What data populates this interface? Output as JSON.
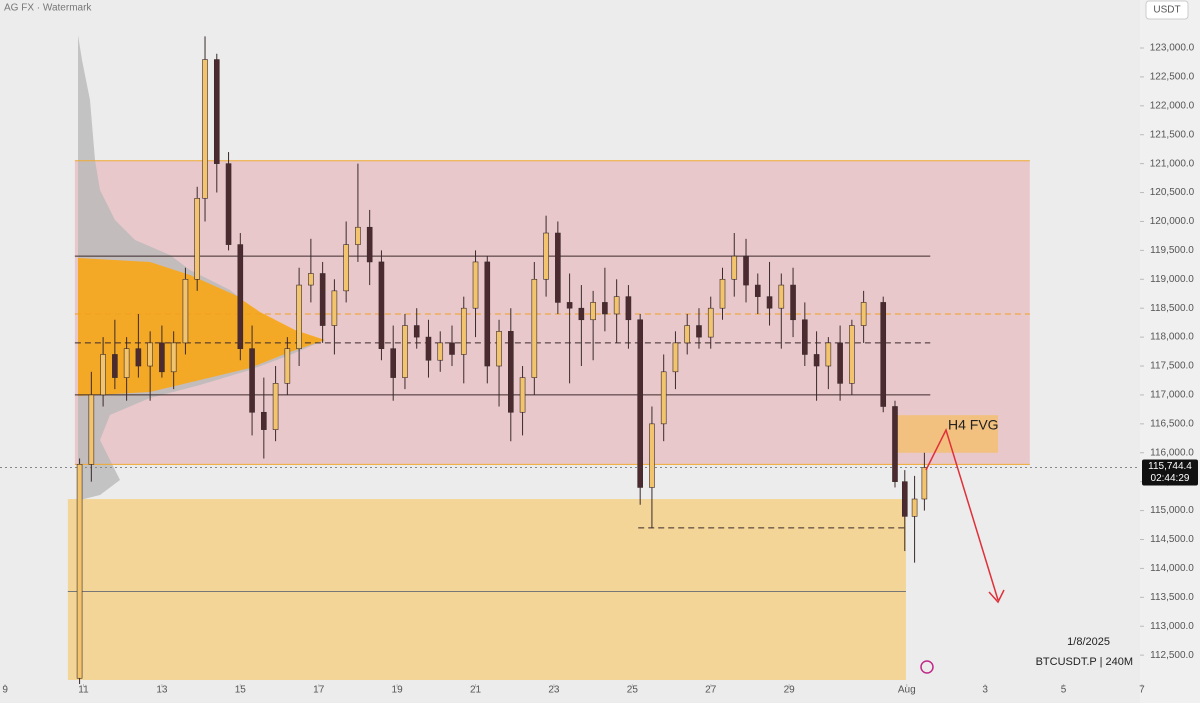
{
  "chart_data": {
    "type": "candlestick",
    "watermark": "AG FX · Watermark",
    "currency": "USDT",
    "up_color": "#f2c46e",
    "down_color": "#4b2b30",
    "x": [
      10.9,
      11.2,
      11.5,
      11.8,
      12.1,
      12.4,
      12.7,
      13.0,
      13.3,
      13.6,
      13.9,
      14.1,
      14.4,
      14.7,
      15.0,
      15.3,
      15.6,
      15.9,
      16.2,
      16.5,
      16.8,
      17.1,
      17.4,
      17.7,
      18.0,
      18.3,
      18.6,
      18.9,
      19.2,
      19.5,
      19.8,
      20.1,
      20.4,
      20.7,
      21.0,
      21.3,
      21.6,
      21.9,
      22.2,
      22.5,
      22.8,
      23.1,
      23.4,
      23.7,
      24.0,
      24.3,
      24.6,
      24.9,
      25.2,
      25.5,
      25.8,
      26.1,
      26.4,
      26.7,
      27.0,
      27.3,
      27.6,
      27.9,
      28.2,
      28.5,
      28.8,
      29.1,
      29.4,
      29.7,
      30.0,
      30.3,
      30.6,
      30.9,
      31.4,
      31.7,
      31.95,
      32.2,
      32.45
    ],
    "open": [
      112100,
      115800,
      117000,
      117700,
      117300,
      117800,
      117500,
      117900,
      117400,
      117900,
      119000,
      120400,
      122800,
      121000,
      119600,
      117800,
      116700,
      116400,
      117200,
      117800,
      118900,
      119100,
      118200,
      118800,
      119600,
      119900,
      119300,
      117800,
      117300,
      118200,
      118000,
      117600,
      117900,
      117700,
      118500,
      119300,
      117500,
      118100,
      116700,
      117300,
      119000,
      119800,
      118600,
      118500,
      118300,
      118600,
      118400,
      118700,
      118300,
      115400,
      116500,
      117400,
      117900,
      118200,
      118000,
      118500,
      119000,
      119400,
      118900,
      118700,
      118500,
      118900,
      118300,
      117700,
      117500,
      117900,
      117200,
      118200,
      118600,
      116800,
      115500,
      114900,
      115200
    ],
    "high": [
      115900,
      117400,
      118000,
      118300,
      118000,
      118400,
      118100,
      118200,
      118100,
      119200,
      120600,
      123200,
      122900,
      121200,
      119800,
      118200,
      117300,
      117500,
      118000,
      119200,
      119700,
      119300,
      119000,
      120000,
      121000,
      120200,
      119500,
      118200,
      118400,
      118500,
      118300,
      118100,
      118200,
      118700,
      119500,
      119400,
      118300,
      118500,
      117500,
      119300,
      120100,
      120000,
      119100,
      118900,
      118800,
      119200,
      119000,
      118900,
      118400,
      116800,
      117700,
      118100,
      118400,
      118500,
      118700,
      119200,
      119800,
      119700,
      119100,
      119300,
      119100,
      119200,
      118600,
      118100,
      118000,
      118200,
      118300,
      118800,
      118700,
      116900,
      115700,
      115600,
      116000
    ],
    "low": [
      112000,
      115500,
      116800,
      117100,
      116900,
      117300,
      116900,
      117300,
      117100,
      117700,
      118800,
      120000,
      120500,
      119500,
      117600,
      116300,
      115900,
      116200,
      117000,
      117500,
      118600,
      117900,
      117700,
      118600,
      119300,
      118900,
      117600,
      116900,
      117100,
      117800,
      117300,
      117400,
      117500,
      117200,
      118000,
      117200,
      116800,
      116200,
      116300,
      117000,
      118700,
      118400,
      117200,
      117500,
      117600,
      118100,
      117900,
      117800,
      115100,
      114700,
      116200,
      117100,
      117700,
      117800,
      117800,
      118300,
      118700,
      118600,
      118400,
      118200,
      117800,
      118000,
      117500,
      116900,
      117100,
      116900,
      117000,
      117900,
      116700,
      115400,
      114300,
      114100,
      115000
    ],
    "close": [
      115800,
      117000,
      117700,
      117300,
      117800,
      117500,
      117900,
      117400,
      117900,
      119000,
      120400,
      122800,
      121000,
      119600,
      117800,
      116700,
      116400,
      117200,
      117800,
      118900,
      119100,
      118200,
      118800,
      119600,
      119900,
      119300,
      117800,
      117300,
      118200,
      118000,
      117600,
      117900,
      117700,
      118500,
      119300,
      117500,
      118100,
      116700,
      117300,
      119000,
      119800,
      118600,
      118500,
      118300,
      118600,
      118400,
      118700,
      118300,
      115400,
      116500,
      117400,
      117900,
      118200,
      118000,
      118500,
      119000,
      119400,
      118900,
      118700,
      118500,
      118900,
      118300,
      117700,
      117500,
      117900,
      117200,
      118200,
      118600,
      116800,
      115500,
      114900,
      115200,
      115744.4
    ],
    "xlim": [
      8.87,
      37.95
    ],
    "xticks": [
      9,
      11,
      13,
      15,
      17,
      19,
      21,
      23,
      25,
      27,
      29,
      {
        "value": 32,
        "label": "Aug"
      },
      {
        "value": 34,
        "label": "3"
      },
      {
        "value": 36,
        "label": "5"
      },
      {
        "value": 38,
        "label": "7"
      }
    ],
    "ylim": [
      112070,
      123830
    ],
    "yticks": [
      {
        "value": 112500,
        "label": "112,500.0"
      },
      {
        "value": 113000,
        "label": "113,000.0"
      },
      {
        "value": 113500,
        "label": "113,500.0"
      },
      {
        "value": 114000,
        "label": "114,000.0"
      },
      {
        "value": 114500,
        "label": "114,500.0"
      },
      {
        "value": 115000,
        "label": "115,000.0"
      },
      {
        "value": 115500,
        "label": "115,500.0"
      },
      {
        "value": 116000,
        "label": "116,000.0"
      },
      {
        "value": 116500,
        "label": "116,500.0"
      },
      {
        "value": 117000,
        "label": "117,000.0"
      },
      {
        "value": 117500,
        "label": "117,500.0"
      },
      {
        "value": 118000,
        "label": "118,000.0"
      },
      {
        "value": 118500,
        "label": "118,500.0"
      },
      {
        "value": 119000,
        "label": "119,000.0"
      },
      {
        "value": 119500,
        "label": "119,500.0"
      },
      {
        "value": 120000,
        "label": "120,000.0"
      },
      {
        "value": 120500,
        "label": "120,500.0"
      },
      {
        "value": 121000,
        "label": "121,000.0"
      },
      {
        "value": 121500,
        "label": "121,500.0"
      },
      {
        "value": 122000,
        "label": "122,000.0"
      },
      {
        "value": 122500,
        "label": "122,500.0"
      },
      {
        "value": 123000,
        "label": "123,000.0"
      }
    ],
    "last_price": {
      "value": 115744.4,
      "label": "115,744.4"
    },
    "countdown": "02:44:29",
    "date": "1/8/2025",
    "symbol": "BTCUSDT.P | 240M",
    "annotation": "H4 FVG",
    "zones": [
      {
        "low": 115800,
        "high": 121050,
        "x0": 10.78,
        "x1": 35.14,
        "color": "#e9c8cc"
      },
      {
        "low": 112070,
        "high": 115200,
        "x0": 10.6,
        "x1": 31.98,
        "color": "#f3d598"
      },
      {
        "low": 116000,
        "high": 116650,
        "x0": 31.65,
        "x1": 34.33,
        "color": "#f3c17f"
      }
    ],
    "levels": [
      {
        "value": 121050,
        "x0": 10.78,
        "x1": 35.14,
        "color": "#f0a830",
        "dashed": false
      },
      {
        "value": 115800,
        "x0": 10.78,
        "x1": 35.14,
        "color": "#f0a830",
        "dashed": false
      },
      {
        "value": 119400,
        "x0": 10.78,
        "x1": 32.6,
        "color": "#3a2a2a",
        "dashed": false
      },
      {
        "value": 118400,
        "x0": 10.78,
        "x1": 35.14,
        "color": "#f0a020",
        "dashed": true
      },
      {
        "value": 117900,
        "x0": 10.78,
        "x1": 32.6,
        "color": "#3a2a2a",
        "dashed": true
      },
      {
        "value": 117000,
        "x0": 10.78,
        "x1": 32.6,
        "color": "#3a2a2a",
        "dashed": false
      },
      {
        "value": 113600,
        "x0": 10.6,
        "x1": 31.98,
        "color": "#777777",
        "dashed": false
      },
      {
        "value": 114700,
        "x0": 25.15,
        "x1": 31.98,
        "color": "#3a2a2a",
        "dashed": true
      }
    ]
  }
}
